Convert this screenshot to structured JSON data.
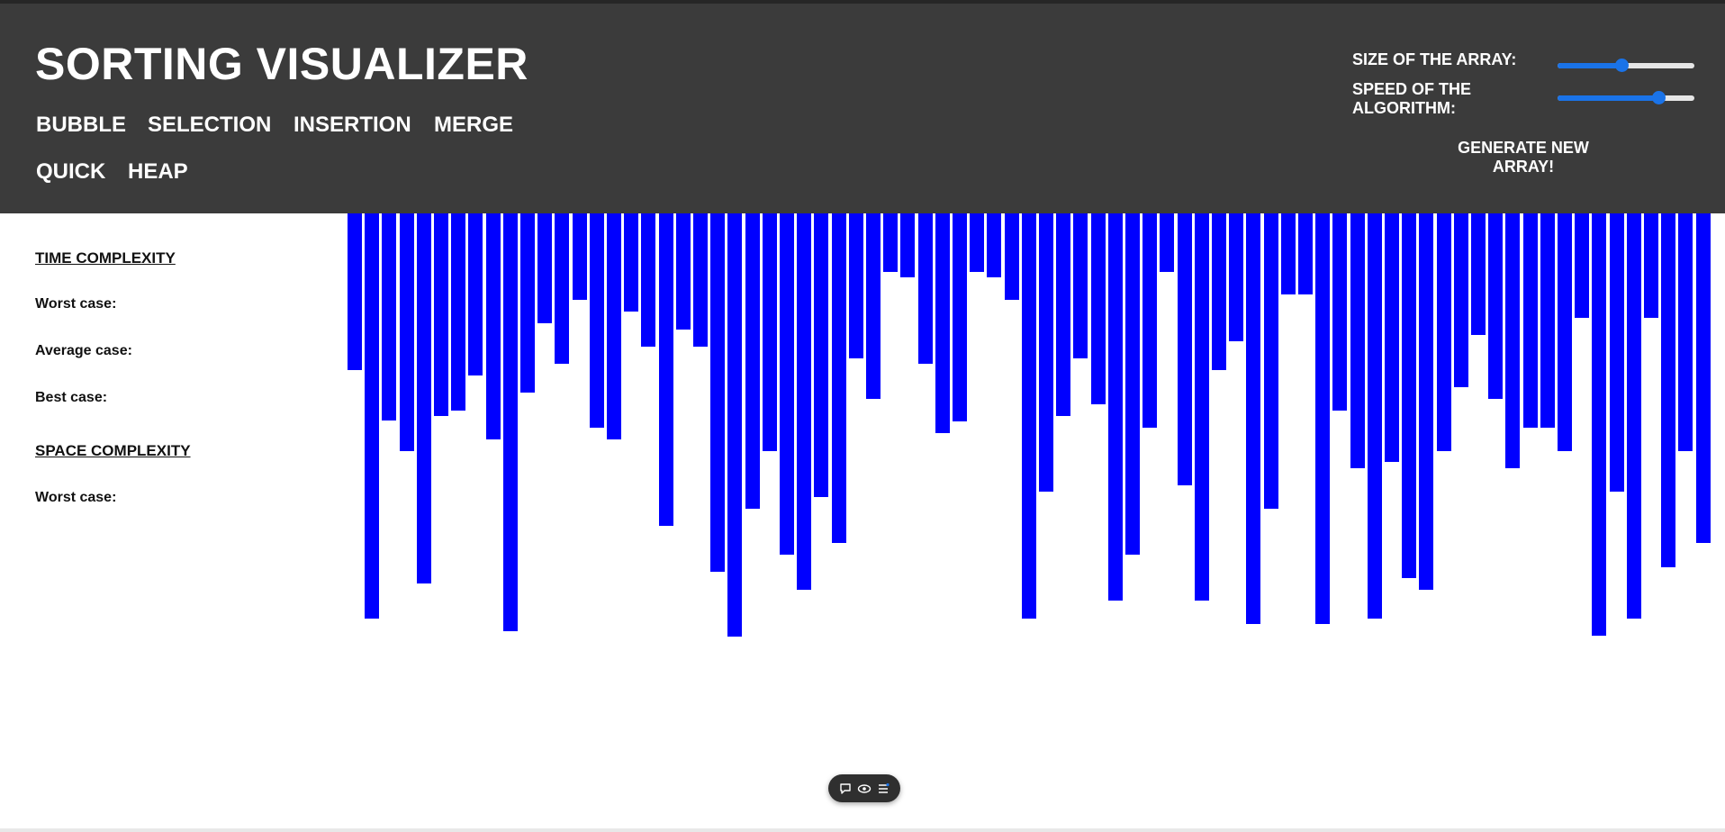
{
  "header": {
    "title": "SORTING VISUALIZER",
    "algorithms": [
      {
        "label": "BUBBLE"
      },
      {
        "label": "SELECTION"
      },
      {
        "label": "INSERTION"
      },
      {
        "label": "MERGE"
      },
      {
        "label": "QUICK"
      },
      {
        "label": "HEAP"
      }
    ],
    "controls": {
      "size_label": "SIZE OF THE ARRAY:",
      "size_value": 0.47,
      "speed_label_line1": "SPEED OF THE",
      "speed_label_line2": "ALGORITHM:",
      "speed_value": 0.74,
      "generate_line1": "GENERATE NEW",
      "generate_line2": "ARRAY!"
    },
    "colors": {
      "background": "#3b3b3b",
      "text": "#ffffff",
      "slider_accent": "#1a73e8"
    }
  },
  "info": {
    "time_heading": "TIME COMPLEXITY",
    "worst_case_label": "Worst case:",
    "average_case_label": "Average case:",
    "best_case_label": "Best case:",
    "space_heading": "SPACE COMPLEXITY",
    "space_worst_case_label": "Worst case:"
  },
  "array": {
    "bar_color": "#0000ff",
    "values": [
      174,
      450,
      230,
      264,
      411,
      225,
      219,
      180,
      251,
      464,
      199,
      122,
      167,
      96,
      238,
      251,
      109,
      148,
      347,
      129,
      148,
      398,
      470,
      328,
      264,
      379,
      418,
      315,
      366,
      161,
      206,
      65,
      71,
      167,
      244,
      231,
      65,
      71,
      96,
      450,
      309,
      225,
      161,
      212,
      430,
      379,
      238,
      65,
      302,
      430,
      174,
      142,
      456,
      328,
      90,
      90,
      456,
      219,
      283,
      450,
      276,
      405,
      418,
      264,
      193,
      135,
      206,
      283,
      238,
      238,
      264,
      116,
      469,
      309,
      450,
      116,
      393,
      264,
      366
    ]
  },
  "toolbar": {
    "icons": [
      "chat-bubble-icon",
      "eye-icon",
      "menu-lines-icon"
    ]
  }
}
